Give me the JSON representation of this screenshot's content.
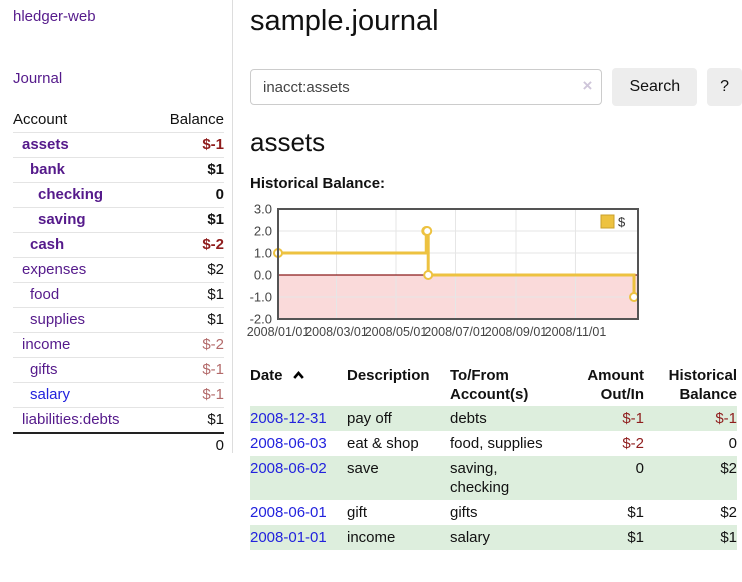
{
  "app": {
    "brand": "hledger-web",
    "nav_journal": "Journal"
  },
  "colors": {
    "accent_purple": "#551a8b",
    "link_blue": "#2222dd",
    "negative_strong": "#8f1d1d",
    "negative_soft": "#b36a6a",
    "row_stripe_green": "#ddeedd"
  },
  "sidebar": {
    "table_headers": {
      "account": "Account",
      "balance": "Balance"
    },
    "accounts": [
      {
        "name": "assets",
        "indent": 1,
        "bold": true,
        "link_color": "purple",
        "balance": "$-1",
        "balance_style": "neg-strong"
      },
      {
        "name": "bank",
        "indent": 2,
        "bold": true,
        "link_color": "purple",
        "balance": "$1",
        "balance_style": "pos"
      },
      {
        "name": "checking",
        "indent": 3,
        "bold": true,
        "link_color": "purple",
        "balance": "0",
        "balance_style": "pos"
      },
      {
        "name": "saving",
        "indent": 3,
        "bold": true,
        "link_color": "purple",
        "balance": "$1",
        "balance_style": "pos"
      },
      {
        "name": "cash",
        "indent": 2,
        "bold": true,
        "link_color": "purple",
        "balance": "$-2",
        "balance_style": "neg-strong"
      },
      {
        "name": "expenses",
        "indent": 1,
        "bold": false,
        "link_color": "purple",
        "balance": "$2",
        "balance_style": "pos"
      },
      {
        "name": "food",
        "indent": 2,
        "bold": false,
        "link_color": "purple",
        "balance": "$1",
        "balance_style": "pos"
      },
      {
        "name": "supplies",
        "indent": 2,
        "bold": false,
        "link_color": "purple",
        "balance": "$1",
        "balance_style": "pos"
      },
      {
        "name": "income",
        "indent": 1,
        "bold": false,
        "link_color": "purple",
        "balance": "$-2",
        "balance_style": "neg-soft"
      },
      {
        "name": "gifts",
        "indent": 2,
        "bold": false,
        "link_color": "purple",
        "balance": "$-1",
        "balance_style": "neg-soft"
      },
      {
        "name": "salary",
        "indent": 2,
        "bold": false,
        "link_color": "blue",
        "balance": "$-1",
        "balance_style": "neg-soft"
      },
      {
        "name": "liabilities:debts",
        "indent": 1,
        "bold": false,
        "link_color": "purple",
        "balance": "$1",
        "balance_style": "pos"
      }
    ],
    "total": "0"
  },
  "header": {
    "title": "sample.journal"
  },
  "search": {
    "value": "inacct:assets",
    "clear_icon": "×",
    "button": "Search",
    "help_button": "?"
  },
  "account_page": {
    "heading": "assets",
    "chart_label": "Historical Balance:"
  },
  "chart_data": {
    "type": "line",
    "title": "Historical Balance:",
    "step": true,
    "series": [
      {
        "name": "$",
        "color": "#edc240",
        "points": [
          {
            "date": "2008-01-01",
            "value": 1
          },
          {
            "date": "2008-06-01",
            "value": 2
          },
          {
            "date": "2008-06-02",
            "value": 2
          },
          {
            "date": "2008-06-03",
            "value": 0
          },
          {
            "date": "2008-12-31",
            "value": -1
          }
        ]
      }
    ],
    "y_ticks": [
      "3.0",
      "2.0",
      "1.0",
      "0.0",
      "-1.0",
      "-2.0"
    ],
    "ylim": [
      -2,
      3
    ],
    "x_ticks": [
      "2008/01/01",
      "2008/03/01",
      "2008/05/01",
      "2008/07/01",
      "2008/09/01",
      "2008/11/01"
    ],
    "x_start": "2008-01-01",
    "x_range_days": 365,
    "grid": true,
    "legend": {
      "label": "$",
      "position": "top-right"
    },
    "negative_region_fill": "#fadada",
    "zero_line_color": "#8b1a1a"
  },
  "register": {
    "columns": [
      {
        "line1": "Date",
        "line2": "",
        "align": "left",
        "sorted": "asc"
      },
      {
        "line1": "Description",
        "line2": "",
        "align": "left"
      },
      {
        "line1": "To/From",
        "line2": "Account(s)",
        "align": "left"
      },
      {
        "line1": "Amount",
        "line2": "Out/In",
        "align": "right"
      },
      {
        "line1": "Historical",
        "line2": "Balance",
        "align": "right"
      }
    ],
    "rows": [
      {
        "date": "2008-12-31",
        "description": "pay off",
        "accounts": "debts",
        "amount": "$-1",
        "balance": "$-1"
      },
      {
        "date": "2008-06-03",
        "description": "eat & shop",
        "accounts": "food, supplies",
        "amount": "$-2",
        "balance": "0"
      },
      {
        "date": "2008-06-02",
        "description": "save",
        "accounts": "saving, checking",
        "amount": "0",
        "balance": "$2"
      },
      {
        "date": "2008-06-01",
        "description": "gift",
        "accounts": "gifts",
        "amount": "$1",
        "balance": "$2"
      },
      {
        "date": "2008-01-01",
        "description": "income",
        "accounts": "salary",
        "amount": "$1",
        "balance": "$1"
      }
    ]
  }
}
